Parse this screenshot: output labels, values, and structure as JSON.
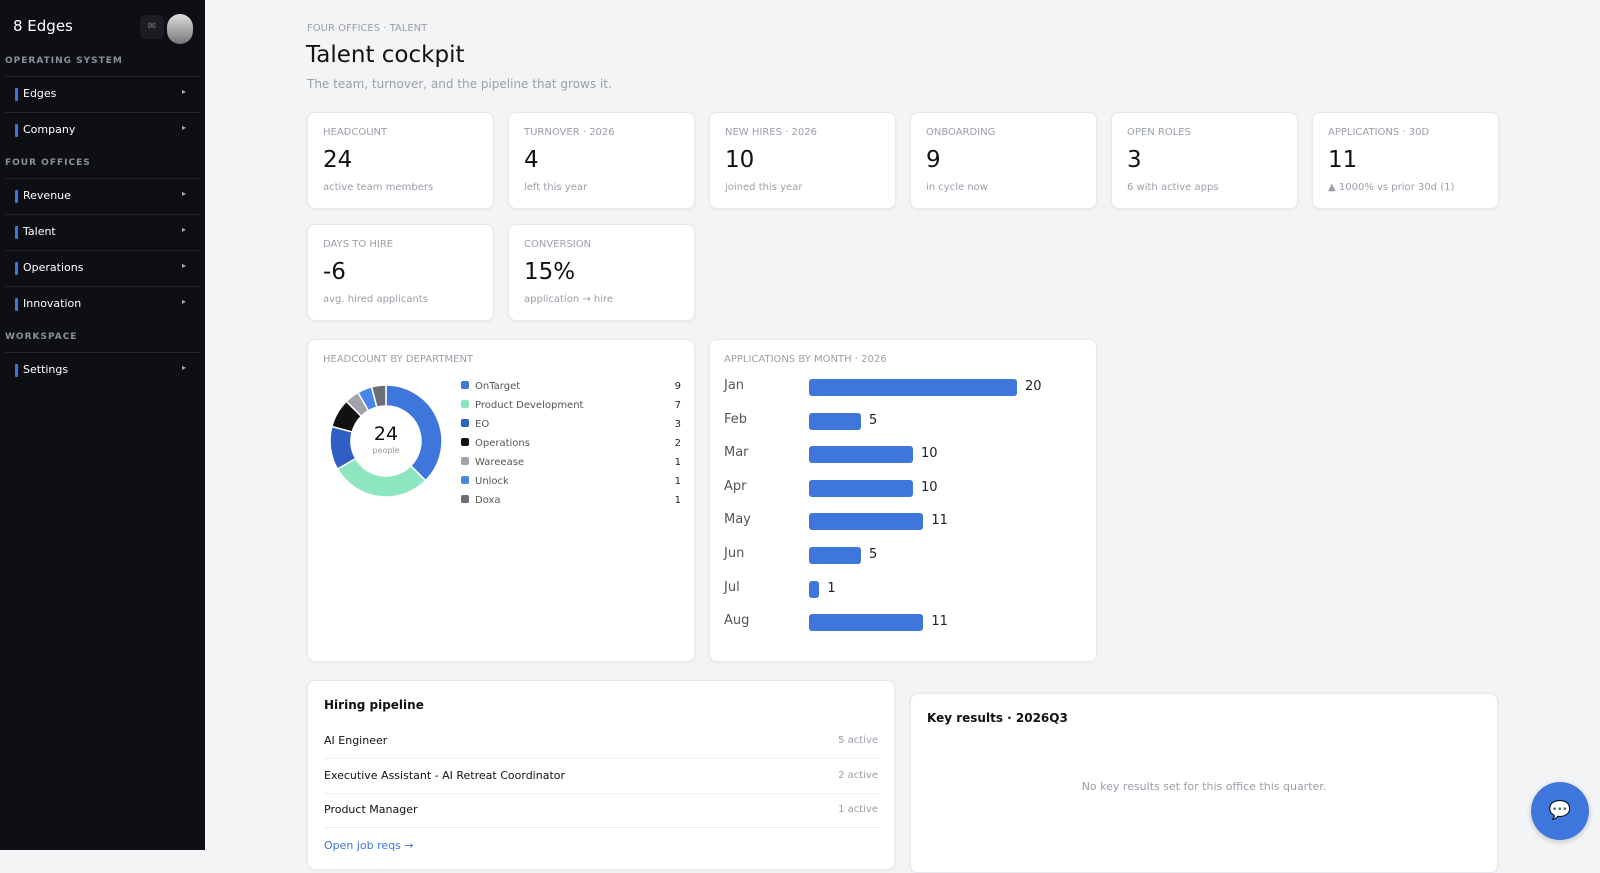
{
  "sidebar": {
    "brand": "8 Edges",
    "sections": [
      {
        "title": "OPERATING SYSTEM",
        "items": [
          "Edges",
          "Company"
        ]
      },
      {
        "title": "FOUR OFFICES",
        "items": [
          "Revenue",
          "Talent",
          "Operations",
          "Innovation"
        ]
      },
      {
        "title": "WORKSPACE",
        "items": [
          "Settings"
        ]
      }
    ]
  },
  "header": {
    "breadcrumb": "FOUR OFFICES · TALENT",
    "title": "Talent cockpit",
    "subtitle": "The team, turnover, and the pipeline that grows it."
  },
  "kpis": [
    {
      "label": "HEADCOUNT",
      "value": "24",
      "note": "active team members"
    },
    {
      "label": "TURNOVER · 2026",
      "value": "4",
      "note": "left this year"
    },
    {
      "label": "NEW HIRES · 2026",
      "value": "10",
      "note": "joined this year"
    },
    {
      "label": "ONBOARDING",
      "value": "9",
      "note": "in cycle now"
    },
    {
      "label": "OPEN ROLES",
      "value": "3",
      "note": "6 with active apps"
    },
    {
      "label": "APPLICATIONS · 30D",
      "value": "11",
      "note": "▲ 1000% vs prior 30d (1)"
    },
    {
      "label": "DAYS TO HIRE",
      "value": "-6",
      "note": "avg. hired applicants"
    },
    {
      "label": "CONVERSION",
      "value": "15%",
      "note": "application → hire"
    }
  ],
  "department_chart": {
    "type": "pie",
    "title": "HEADCOUNT BY DEPARTMENT",
    "center_value": "24",
    "center_label": "people",
    "categories": [
      "OnTarget",
      "Product Development",
      "EO",
      "Operations",
      "Wareease",
      "Unlock",
      "Doxa"
    ],
    "values": [
      9,
      7,
      3,
      2,
      1,
      1,
      1
    ],
    "colors": [
      "#3f76dc",
      "#8ee6c0",
      "#2f5fc4",
      "#111111",
      "#a0a4aa",
      "#4a86e8",
      "#6b6f76"
    ]
  },
  "applications_chart": {
    "type": "bar",
    "title": "APPLICATIONS BY MONTH · 2026",
    "categories": [
      "Jan",
      "Feb",
      "Mar",
      "Apr",
      "May",
      "Jun",
      "Jul",
      "Aug"
    ],
    "values": [
      20,
      5,
      10,
      10,
      11,
      5,
      1,
      11
    ],
    "color": "#3f76dc"
  },
  "pipeline": {
    "title": "Hiring pipeline",
    "rows": [
      {
        "role": "AI Engineer",
        "status": "5 active"
      },
      {
        "role": "Executive Assistant - AI Retreat Coordinator",
        "status": "2 active"
      },
      {
        "role": "Product Manager",
        "status": "1 active"
      }
    ],
    "link": "Open job reqs →"
  },
  "key_results": {
    "title": "Key results · 2026Q3",
    "empty": "No key results set for this office this quarter."
  }
}
